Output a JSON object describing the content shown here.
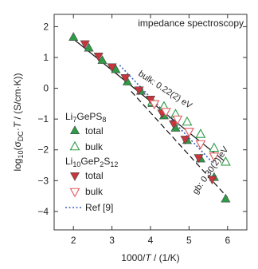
{
  "chart_data": {
    "type": "scatter",
    "title": "impedance spectroscopy",
    "xlabel": "1000/T / (1/K)",
    "ylabel": "log10(σDC·T / (S/cm·K))",
    "xlim": [
      1.5,
      6.5
    ],
    "ylim": [
      -4.6,
      2.4
    ],
    "xticks": [
      2,
      3,
      4,
      5,
      6
    ],
    "yticks": [
      2,
      1,
      0,
      -1,
      -2,
      -3,
      -4
    ],
    "grid": false,
    "legend_position": "left",
    "colors": {
      "li7_total": "#2e9b46",
      "li7_bulk": "#2e9b46",
      "li10_total": "#c8363c",
      "li10_bulk": "#e0585c",
      "ref": "#3a5fc0",
      "fit": "#111111"
    },
    "series": [
      {
        "group": "Li7GePS8",
        "name": "total",
        "marker": "triangle-up-filled",
        "x": [
          2.0,
          2.4,
          2.75,
          3.1,
          3.4,
          3.75,
          4.05,
          4.35,
          4.65,
          4.95,
          5.3,
          5.65,
          5.95
        ],
        "y": [
          1.65,
          1.3,
          0.9,
          0.6,
          0.2,
          -0.1,
          -0.5,
          -0.9,
          -1.3,
          -1.7,
          -2.3,
          -2.9,
          -3.6
        ]
      },
      {
        "group": "Li7GePS8",
        "name": "bulk",
        "marker": "triangle-up-open",
        "x": [
          4.05,
          4.35,
          4.65,
          4.95,
          5.3,
          5.65,
          5.95
        ],
        "y": [
          -0.45,
          -0.6,
          -0.85,
          -1.1,
          -1.5,
          -1.95,
          -2.4
        ]
      },
      {
        "group": "Li10GeP2S12",
        "name": "total",
        "marker": "triangle-down-filled",
        "x": [
          2.3,
          2.65,
          3.0,
          3.35,
          3.7,
          4.0,
          4.3,
          4.6,
          4.9,
          5.25,
          5.6
        ],
        "y": [
          1.45,
          1.05,
          0.7,
          0.35,
          -0.05,
          -0.35,
          -0.8,
          -1.15,
          -1.65,
          -2.25,
          -2.95
        ]
      },
      {
        "group": "Li10GeP2S12",
        "name": "bulk",
        "marker": "triangle-down-open",
        "x": [
          4.1,
          4.4,
          4.7,
          5.0,
          5.3,
          5.65
        ],
        "y": [
          -0.5,
          -0.75,
          -1.0,
          -1.4,
          -1.8,
          -2.2
        ]
      }
    ],
    "lines": [
      {
        "label": "bulk: 0.22(2) eV",
        "style": "solid",
        "x": [
          2.0,
          6.0
        ],
        "y": [
          1.6,
          -2.45
        ]
      },
      {
        "label": "gb: 0.30(2) eV",
        "style": "dashed",
        "x": [
          3.5,
          6.0
        ],
        "y": [
          -0.1,
          -3.55
        ]
      },
      {
        "label": "Ref [9]",
        "style": "dotted",
        "x": [
          3.2,
          5.6
        ],
        "y": [
          0.75,
          -2.4
        ]
      }
    ],
    "annotations": [
      "bulk: 0.22(2) eV",
      "gb: 0.30(2) eV"
    ],
    "legend": {
      "group1": "Li7GePS8",
      "group2": "Li10GeP2S12",
      "total": "total",
      "bulk": "bulk",
      "ref": "Ref [9]"
    }
  }
}
